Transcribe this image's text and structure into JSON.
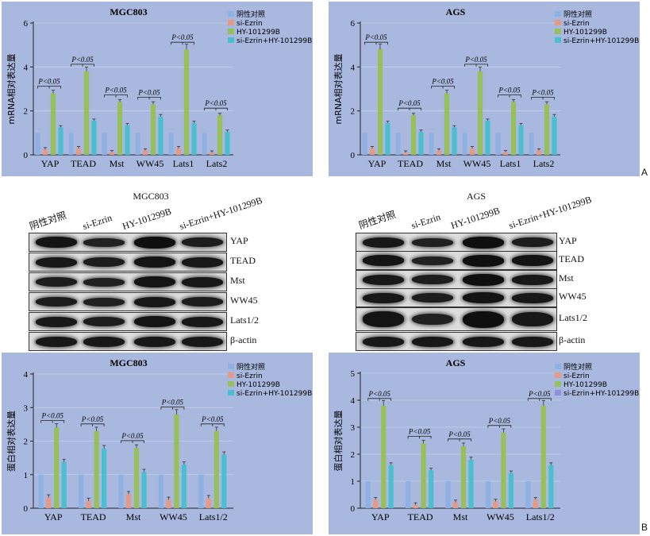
{
  "figure": {
    "label_a": "A",
    "label_b": "B"
  },
  "colors": {
    "panel": "#a9b8de",
    "ctrl": "#8fb0e3",
    "siezrin": "#e49a86",
    "hy": "#98c05a",
    "combo": "#4bbfcf",
    "combo_alt": "#8f90d8"
  },
  "blots": [
    {
      "title": "MGC803",
      "lanes": [
        "阴性对照",
        "si-Ezrin",
        "HY-101299B",
        "si-Ezrin+HY-101299B"
      ],
      "proteins": [
        "YAP",
        "TEAD",
        "Mst",
        "WW45",
        "Lats1/2",
        "β-actin"
      ],
      "intensity": [
        [
          0.9,
          0.6,
          1.0,
          0.7
        ],
        [
          0.8,
          0.7,
          0.9,
          0.8
        ],
        [
          0.7,
          0.6,
          0.9,
          0.8
        ],
        [
          0.7,
          0.6,
          0.8,
          0.7
        ],
        [
          0.8,
          0.7,
          0.9,
          0.8
        ],
        [
          0.8,
          0.8,
          0.8,
          0.8
        ]
      ]
    },
    {
      "title": "AGS",
      "lanes": [
        "阴性对照",
        "si-Ezrin",
        "HY-101299B",
        "si-Ezrin+HY-101299B"
      ],
      "proteins": [
        "YAP",
        "TEAD",
        "Mst",
        "WW45",
        "Lats1/2",
        "β-actin"
      ],
      "intensity": [
        [
          0.8,
          0.6,
          1.0,
          0.7
        ],
        [
          0.9,
          0.6,
          1.0,
          0.9
        ],
        [
          0.8,
          0.7,
          1.0,
          0.8
        ],
        [
          0.8,
          0.7,
          0.9,
          0.8
        ],
        [
          0.9,
          0.6,
          1.0,
          0.8
        ],
        [
          0.8,
          0.8,
          0.8,
          0.8
        ]
      ]
    }
  ],
  "chart_data": [
    {
      "type": "bar",
      "title": "MGC803",
      "ylabel": "mRNA相对表达量",
      "ylim": [
        0,
        6
      ],
      "yticks": [
        0,
        2,
        4,
        6
      ],
      "categories": [
        "YAP",
        "TEAD",
        "Mst",
        "WW45",
        "Lats1",
        "Lats2"
      ],
      "legend_position": "top-right",
      "grid": true,
      "series": [
        {
          "name": "阴性对照",
          "color": "#8fb0e3",
          "values": [
            1,
            1,
            1,
            1,
            1,
            1
          ]
        },
        {
          "name": "si-Ezrin",
          "color": "#e49a86",
          "values": [
            0.25,
            0.3,
            0.12,
            0.2,
            0.3,
            0.1
          ]
        },
        {
          "name": "HY-101299B",
          "color": "#98c05a",
          "values": [
            2.8,
            3.8,
            2.4,
            2.3,
            4.8,
            1.8
          ]
        },
        {
          "name": "si-Ezrin+HY-101299B",
          "color": "#4bbfcf",
          "values": [
            1.25,
            1.55,
            1.35,
            1.75,
            1.45,
            1.05
          ]
        }
      ],
      "annotations": [
        "P<0.05",
        "P<0.05",
        "P<0.05",
        "P<0.05",
        "P<0.05",
        "P<0.05"
      ]
    },
    {
      "type": "bar",
      "title": "AGS",
      "ylabel": "mRNA相对表达量",
      "ylim": [
        0,
        6
      ],
      "yticks": [
        0,
        2,
        4,
        6
      ],
      "categories": [
        "YAP",
        "TEAD",
        "Mst",
        "WW45",
        "Lats1",
        "Lats2"
      ],
      "legend_position": "top-right",
      "grid": true,
      "series": [
        {
          "name": "阴性对照",
          "color": "#8fb0e3",
          "values": [
            1,
            1,
            1,
            1,
            1,
            1
          ]
        },
        {
          "name": "si-Ezrin",
          "color": "#e49a86",
          "values": [
            0.3,
            0.1,
            0.2,
            0.3,
            0.12,
            0.2
          ]
        },
        {
          "name": "HY-101299B",
          "color": "#98c05a",
          "values": [
            4.8,
            1.8,
            2.8,
            3.8,
            2.4,
            2.3
          ]
        },
        {
          "name": "si-Ezrin+HY-101299B",
          "color": "#4bbfcf",
          "values": [
            1.45,
            1.05,
            1.25,
            1.55,
            1.35,
            1.75
          ]
        }
      ],
      "annotations": [
        "P<0.05",
        "P<0.05",
        "P<0.05",
        "P<0.05",
        "P<0.05",
        "P<0.05"
      ]
    },
    {
      "type": "bar",
      "title": "MGC803",
      "ylabel": "蛋白相对表达量",
      "ylim": [
        0,
        4
      ],
      "yticks": [
        0,
        1,
        2,
        3,
        4
      ],
      "categories": [
        "YAP",
        "TEAD",
        "Mst",
        "WW45",
        "Lats1/2"
      ],
      "legend_position": "top-right",
      "grid": true,
      "series": [
        {
          "name": "阴性对照",
          "color": "#8fb0e3",
          "values": [
            1,
            1,
            1,
            1,
            1
          ]
        },
        {
          "name": "si-Ezrin",
          "color": "#e49a86",
          "values": [
            0.32,
            0.22,
            0.42,
            0.25,
            0.3
          ]
        },
        {
          "name": "HY-101299B",
          "color": "#98c05a",
          "values": [
            2.4,
            2.3,
            1.8,
            2.8,
            2.3
          ]
        },
        {
          "name": "si-Ezrin+HY-101299B",
          "color": "#4bbfcf",
          "values": [
            1.38,
            1.78,
            1.08,
            1.3,
            1.6
          ]
        }
      ],
      "annotations": [
        "P<0.05",
        "P<0.05",
        "P<0.05",
        "P<0.05",
        "P<0.05"
      ]
    },
    {
      "type": "bar",
      "title": "AGS",
      "ylabel": "蛋白相对表达量",
      "ylim": [
        0,
        5
      ],
      "yticks": [
        0,
        1,
        2,
        3,
        4,
        5
      ],
      "categories": [
        "YAP",
        "TEAD",
        "Mst",
        "WW45",
        "Lats1/2"
      ],
      "legend_position": "top-right",
      "grid": true,
      "series": [
        {
          "name": "阴性对照",
          "color": "#8fb0e3",
          "values": [
            1,
            1,
            1,
            1,
            1
          ]
        },
        {
          "name": "si-Ezrin",
          "color": "#e49a86",
          "values": [
            0.32,
            0.12,
            0.22,
            0.25,
            0.32
          ]
        },
        {
          "name": "HY-101299B",
          "color": "#98c05a",
          "values": [
            3.8,
            2.4,
            2.3,
            2.8,
            3.8
          ]
        },
        {
          "name": "si-Ezrin+HY-101299B",
          "color": "#4bbfcf",
          "legend_color": "#8f90d8",
          "values": [
            1.6,
            1.4,
            1.8,
            1.3,
            1.6
          ]
        }
      ],
      "annotations": [
        "P<0.05",
        "P<0.05",
        "P<0.05",
        "P<0.05",
        "P<0.05"
      ]
    }
  ]
}
